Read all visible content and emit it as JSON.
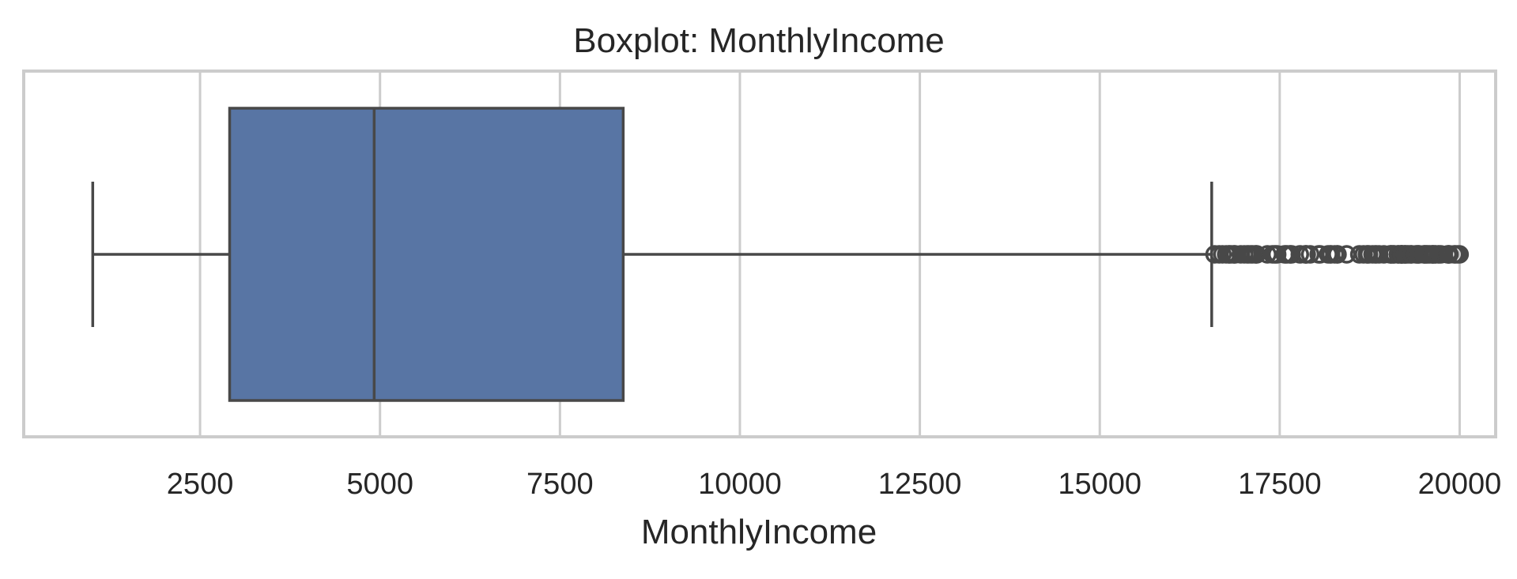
{
  "chart_data": {
    "type": "boxplot",
    "title": "Boxplot: MonthlyIncome",
    "xlabel": "MonthlyIncome",
    "ylabel": "",
    "orientation": "horizontal",
    "xlim": [
      50,
      20500
    ],
    "xticks": [
      2500,
      5000,
      7500,
      10000,
      12500,
      15000,
      17500,
      20000
    ],
    "xtick_labels": [
      "2500",
      "5000",
      "7500",
      "10000",
      "12500",
      "15000",
      "17500",
      "20000"
    ],
    "grid": true,
    "series": [
      {
        "whisker_low": 1009,
        "q1": 2911,
        "median": 4919,
        "q3": 8379,
        "whisker_high": 16555,
        "outliers": [
          16595,
          16659,
          16704,
          16756,
          16792,
          16799,
          16823,
          16856,
          16872,
          16880,
          16959,
          17007,
          17046,
          17068,
          17099,
          17123,
          17159,
          17174,
          17181,
          17328,
          17399,
          17426,
          17444,
          17465,
          17567,
          17584,
          17603,
          17639,
          17650,
          17665,
          17779,
          17856,
          17861,
          17875,
          17924,
          18041,
          18061,
          18172,
          18200,
          18213,
          18265,
          18300,
          18303,
          18430,
          18606,
          18665,
          18711,
          18722,
          18740,
          18789,
          18824,
          18844,
          18880,
          18947,
          19033,
          19045,
          19049,
          19068,
          19081,
          19094,
          19141,
          19144,
          19161,
          19187,
          19189,
          19190,
          19197,
          19202,
          19232,
          19237,
          19246,
          19272,
          19294,
          19328,
          19331,
          19392,
          19406,
          19419,
          19431,
          19436,
          19502,
          19513,
          19517,
          19537,
          19545,
          19566,
          19586,
          19613,
          19626,
          19627,
          19636,
          19658,
          19665,
          19701,
          19717,
          19740,
          19833,
          19845,
          19847,
          19859,
          19926,
          19943,
          19973,
          19999
        ]
      }
    ],
    "colors": {
      "box_fill": "#5875a4",
      "line": "#484848",
      "grid": "#cccccc",
      "frame": "#cccccc"
    }
  }
}
